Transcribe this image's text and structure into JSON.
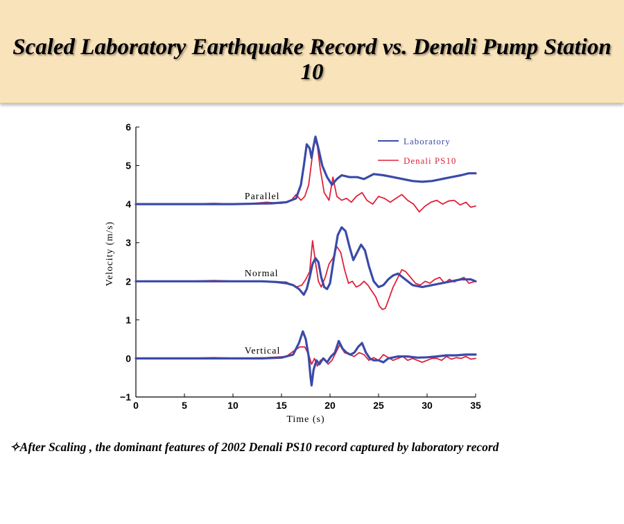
{
  "slide": {
    "title": "Scaled Laboratory Earthquake Record vs. Denali Pump Station 10",
    "caption": "✧After Scaling , the dominant features of 2002 Denali PS10 record captured by laboratory record"
  },
  "chart_data": {
    "type": "line",
    "xlabel": "Time (s)",
    "ylabel": "Velocity (m/s)",
    "xlim": [
      0,
      35
    ],
    "ylim": [
      -1,
      6
    ],
    "xticks": [
      0,
      5,
      10,
      15,
      20,
      25,
      30,
      35
    ],
    "yticks": [
      -1,
      0,
      1,
      2,
      3,
      4,
      5,
      6
    ],
    "grid": false,
    "legend_position": "top-right",
    "colors": {
      "laboratory": "#3a4aa8",
      "denali": "#e0203a"
    },
    "annotations": [
      {
        "text": "Parallel",
        "x": 11.2,
        "y": 4.2
      },
      {
        "text": "Normal",
        "x": 11.2,
        "y": 2.2
      },
      {
        "text": "Vertical",
        "x": 11.2,
        "y": 0.2
      }
    ],
    "series": [
      {
        "name": "Laboratory",
        "component": "Parallel",
        "x": [
          0,
          5,
          10,
          14,
          15.5,
          16.5,
          17,
          17.3,
          17.6,
          17.9,
          18.1,
          18.3,
          18.5,
          18.8,
          19.2,
          19.7,
          20.2,
          20.7,
          21.2,
          22,
          22.8,
          23.5,
          24.5,
          25.5,
          26.5,
          27.5,
          28.5,
          29.5,
          30.5,
          31.5,
          32.5,
          33.5,
          34.3,
          35
        ],
        "y": [
          4.0,
          4.0,
          4.0,
          4.02,
          4.05,
          4.15,
          4.5,
          5.0,
          5.55,
          5.45,
          5.2,
          5.5,
          5.75,
          5.45,
          5.0,
          4.7,
          4.5,
          4.65,
          4.75,
          4.7,
          4.7,
          4.65,
          4.78,
          4.75,
          4.7,
          4.65,
          4.6,
          4.58,
          4.6,
          4.65,
          4.7,
          4.75,
          4.8,
          4.8
        ]
      },
      {
        "name": "Denali PS10",
        "component": "Parallel",
        "x": [
          0,
          5,
          8,
          11,
          13.5,
          15,
          16,
          16.5,
          17,
          17.4,
          17.8,
          18.1,
          18.4,
          18.7,
          19,
          19.4,
          19.9,
          20.3,
          20.7,
          21.2,
          21.7,
          22.2,
          22.7,
          23.3,
          23.8,
          24.4,
          25,
          25.6,
          26.2,
          26.8,
          27.4,
          28,
          28.6,
          29.2,
          29.8,
          30.4,
          31,
          31.6,
          32.2,
          32.8,
          33.4,
          34,
          34.5,
          35
        ],
        "y": [
          4.0,
          4.0,
          4.02,
          4.0,
          4.05,
          4.02,
          4.1,
          4.25,
          4.1,
          4.2,
          4.5,
          5.1,
          5.7,
          5.5,
          4.9,
          4.3,
          4.1,
          4.7,
          4.2,
          4.1,
          4.15,
          4.05,
          4.2,
          4.3,
          4.1,
          4.0,
          4.2,
          4.15,
          4.05,
          4.15,
          4.25,
          4.1,
          4.0,
          3.8,
          3.95,
          4.05,
          4.1,
          4.0,
          4.08,
          4.1,
          3.98,
          4.05,
          3.92,
          3.95
        ]
      },
      {
        "name": "Laboratory",
        "component": "Normal",
        "x": [
          0,
          5,
          10,
          13,
          14.5,
          15.5,
          16.2,
          16.8,
          17.3,
          17.6,
          17.9,
          18.2,
          18.5,
          18.8,
          19.1,
          19.4,
          19.7,
          20,
          20.4,
          20.8,
          21.2,
          21.6,
          22,
          22.4,
          22.8,
          23.2,
          23.6,
          24,
          24.5,
          25,
          25.5,
          26,
          26.5,
          27,
          27.5,
          28,
          28.5,
          29.5,
          30.5,
          31.5,
          32.5,
          33.5,
          34.5,
          35
        ],
        "y": [
          2.0,
          2.0,
          2.0,
          2.0,
          1.98,
          1.95,
          1.9,
          1.8,
          1.65,
          1.8,
          2.1,
          2.45,
          2.6,
          2.5,
          2.1,
          1.85,
          1.8,
          1.95,
          2.6,
          3.2,
          3.4,
          3.3,
          2.9,
          2.55,
          2.75,
          2.95,
          2.8,
          2.4,
          2.0,
          1.85,
          1.9,
          2.05,
          2.15,
          2.2,
          2.1,
          2.0,
          1.9,
          1.85,
          1.9,
          1.95,
          2.0,
          2.05,
          2.05,
          2.0
        ]
      },
      {
        "name": "Denali PS10",
        "component": "Normal",
        "x": [
          0,
          5,
          8,
          11,
          13.5,
          15.5,
          16.5,
          17.1,
          17.5,
          17.9,
          18.2,
          18.5,
          18.8,
          19.1,
          19.5,
          19.9,
          20.3,
          20.7,
          21.1,
          21.5,
          21.9,
          22.3,
          22.7,
          23.1,
          23.5,
          23.9,
          24.3,
          24.7,
          25.1,
          25.4,
          25.7,
          26,
          26.5,
          27,
          27.4,
          27.8,
          28.3,
          28.8,
          29.3,
          29.8,
          30.3,
          30.8,
          31.3,
          31.8,
          32.3,
          32.8,
          33.3,
          33.8,
          34.3,
          35
        ],
        "y": [
          2.0,
          2.0,
          2.02,
          2.0,
          2.0,
          1.98,
          1.85,
          1.9,
          2.05,
          2.25,
          3.05,
          2.5,
          2.0,
          1.85,
          2.1,
          2.45,
          2.6,
          2.9,
          2.75,
          2.3,
          1.95,
          2.0,
          1.85,
          1.9,
          2.0,
          1.9,
          1.75,
          1.6,
          1.35,
          1.27,
          1.3,
          1.5,
          1.85,
          2.1,
          2.3,
          2.25,
          2.1,
          1.95,
          1.9,
          2.0,
          1.95,
          2.05,
          2.1,
          1.95,
          2.05,
          1.98,
          2.05,
          2.1,
          1.95,
          2.0
        ]
      },
      {
        "name": "Laboratory",
        "component": "Vertical",
        "x": [
          0,
          5,
          10,
          13,
          15,
          16.2,
          16.8,
          17.2,
          17.5,
          17.8,
          18,
          18.1,
          18.3,
          18.6,
          18.9,
          19.3,
          19.7,
          20.1,
          20.5,
          20.9,
          21.3,
          21.7,
          22.1,
          22.5,
          22.9,
          23.3,
          23.7,
          24.1,
          24.5,
          25,
          25.5,
          26,
          27,
          28,
          29,
          30,
          31,
          32,
          33,
          34,
          35
        ],
        "y": [
          0.0,
          0.0,
          0.0,
          0.0,
          0.02,
          0.1,
          0.4,
          0.7,
          0.5,
          0.05,
          -0.5,
          -0.7,
          -0.3,
          -0.05,
          -0.15,
          0.0,
          -0.1,
          0.05,
          0.15,
          0.45,
          0.25,
          0.15,
          0.1,
          0.15,
          0.3,
          0.4,
          0.15,
          0.0,
          -0.05,
          -0.05,
          -0.1,
          0.0,
          0.05,
          0.05,
          0.02,
          0.03,
          0.05,
          0.08,
          0.08,
          0.1,
          0.1
        ]
      },
      {
        "name": "Denali PS10",
        "component": "Vertical",
        "x": [
          0,
          5,
          8,
          11,
          13.5,
          15.5,
          16.3,
          16.9,
          17.4,
          17.8,
          18.1,
          18.4,
          18.7,
          19,
          19.4,
          19.8,
          20.2,
          20.6,
          21,
          21.5,
          22,
          22.5,
          23,
          23.5,
          24,
          24.5,
          25,
          25.5,
          26,
          26.5,
          27,
          27.5,
          28,
          28.5,
          29,
          29.5,
          30,
          30.5,
          31,
          31.5,
          32,
          32.5,
          33,
          33.5,
          34,
          34.5,
          35
        ],
        "y": [
          0.0,
          0.0,
          0.02,
          0.0,
          0.02,
          0.05,
          0.2,
          0.3,
          0.3,
          0.1,
          -0.15,
          0.0,
          -0.2,
          -0.05,
          0.0,
          -0.15,
          -0.05,
          0.15,
          0.35,
          0.15,
          0.1,
          0.05,
          0.15,
          0.1,
          -0.05,
          0.02,
          -0.05,
          0.1,
          0.02,
          -0.05,
          0.0,
          0.05,
          -0.05,
          0.0,
          -0.05,
          -0.1,
          -0.05,
          0.0,
          0.0,
          -0.05,
          0.05,
          -0.02,
          0.02,
          0.0,
          0.05,
          -0.02,
          0.0
        ]
      }
    ]
  }
}
